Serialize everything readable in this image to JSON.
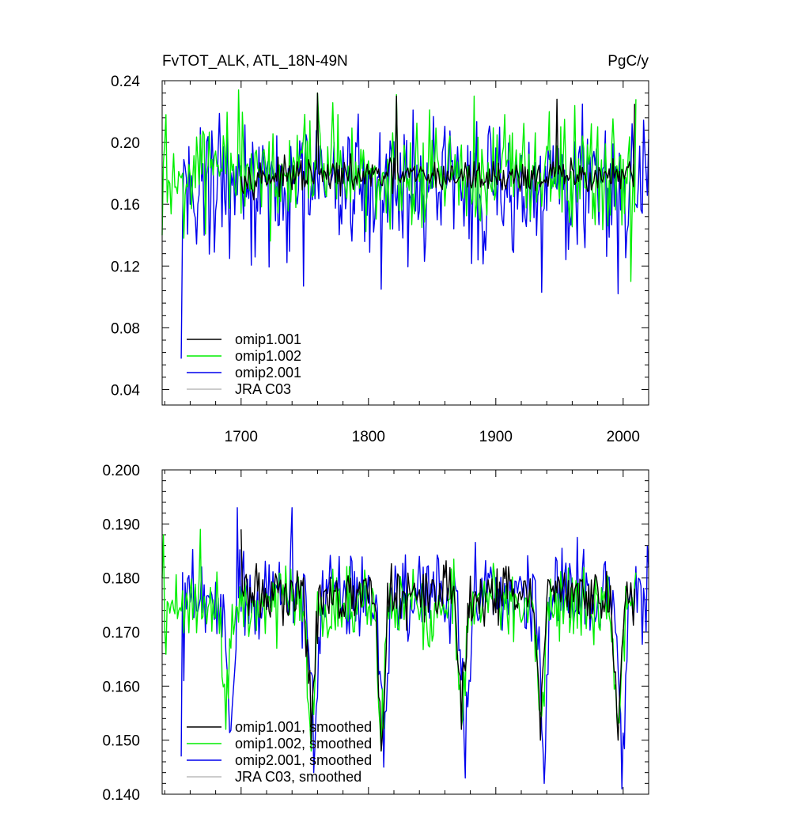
{
  "colors": {
    "omip1_001": "#000000",
    "omip1_002": "#00ee00",
    "omip2_001": "#0000ee",
    "jra_c03": "#bbbbbb"
  },
  "chart_data": [
    {
      "type": "line",
      "title": "FvTOT_ALK, ATL_18N-49N",
      "units": "PgC/y",
      "xlabel": "",
      "ylabel": "",
      "xlim": [
        1638,
        2020
      ],
      "ylim": [
        0.03,
        0.24
      ],
      "x_ticks": [
        1700,
        1800,
        1900,
        2000
      ],
      "x_tick_labels": [
        "1700",
        "1800",
        "1900",
        "2000"
      ],
      "y_ticks": [
        0.04,
        0.08,
        0.12,
        0.16,
        0.2,
        0.24
      ],
      "y_tick_labels": [
        "0.04",
        "0.08",
        "0.12",
        "0.16",
        "0.20",
        "0.24"
      ],
      "grid": false,
      "legend_position": "bottom-left",
      "series": [
        {
          "name": "omip1.001",
          "color_key": "omip1_001",
          "x_start": 1700,
          "x_end": 2009,
          "base": 0.178,
          "noise": 0.008,
          "dips": [],
          "sample_points": [
            [
              1700,
              0.178
            ],
            [
              1760,
              0.232
            ],
            [
              1822,
              0.23
            ],
            [
              1948,
              0.228
            ],
            [
              2009,
              0.225
            ]
          ]
        },
        {
          "name": "omip1.002",
          "color_key": "omip1_002",
          "x_start": 1638,
          "x_end": 2010,
          "base": 0.177,
          "noise": 0.028,
          "dips": [],
          "sample_points": [
            [
              1638,
              0.14
            ],
            [
              1641,
              0.218
            ],
            [
              1698,
              0.234
            ],
            [
              1760,
              0.232
            ],
            [
              1822,
              0.231
            ],
            [
              1883,
              0.23
            ],
            [
              2006,
              0.11
            ],
            [
              2010,
              0.228
            ]
          ]
        },
        {
          "name": "omip2.001",
          "color_key": "omip2_001",
          "x_start": 1653,
          "x_end": 2020,
          "base": 0.172,
          "noise": 0.034,
          "dips": [],
          "sample_points": [
            [
              1653,
              0.06
            ],
            [
              1655,
              0.189
            ],
            [
              1660,
              0.16
            ],
            [
              1749,
              0.107
            ],
            [
              1810,
              0.105
            ],
            [
              1936,
              0.103
            ],
            [
              1996,
              0.102
            ],
            [
              2020,
              0.202
            ]
          ]
        },
        {
          "name": "JRA C03",
          "color_key": "jra_c03",
          "x_start": null,
          "x_end": null,
          "sample_points": []
        }
      ]
    },
    {
      "type": "line",
      "title": "",
      "xlabel": "",
      "ylabel": "",
      "xlim": [
        1638,
        2020
      ],
      "ylim": [
        0.14,
        0.2
      ],
      "x_ticks": [
        1700,
        1800,
        1900,
        2000
      ],
      "x_tick_labels": [],
      "y_ticks": [
        0.14,
        0.15,
        0.16,
        0.17,
        0.18,
        0.19,
        0.2
      ],
      "y_tick_labels": [
        "0.140",
        "0.150",
        "0.160",
        "0.170",
        "0.180",
        "0.190",
        "0.200"
      ],
      "grid": false,
      "legend_position": "bottom-left",
      "series": [
        {
          "name": "omip1.001, smoothed",
          "color_key": "omip1_001",
          "x_start": 1700,
          "x_end": 2009,
          "base": 0.177,
          "noise": 0.004,
          "dips": [
            [
              1755,
              0.15
            ],
            [
              1810,
              0.148
            ],
            [
              1873,
              0.152
            ],
            [
              1935,
              0.15
            ],
            [
              1996,
              0.15
            ]
          ],
          "sample_points": [
            [
              1700,
              0.189
            ],
            [
              1755,
              0.15
            ],
            [
              1810,
              0.148
            ],
            [
              1873,
              0.152
            ],
            [
              1935,
              0.15
            ],
            [
              1996,
              0.15
            ],
            [
              2009,
              0.178
            ]
          ]
        },
        {
          "name": "omip1.002, smoothed",
          "color_key": "omip1_002",
          "x_start": 1638,
          "x_end": 2010,
          "base": 0.175,
          "noise": 0.005,
          "dips": [
            [
              1688,
              0.152
            ],
            [
              1755,
              0.148
            ],
            [
              1810,
              0.148
            ],
            [
              1873,
              0.15
            ],
            [
              1935,
              0.148
            ],
            [
              1996,
              0.148
            ]
          ],
          "sample_points": [
            [
              1638,
              0.18
            ],
            [
              1639,
              0.188
            ],
            [
              1668,
              0.189
            ],
            [
              1688,
              0.152
            ],
            [
              1755,
              0.148
            ],
            [
              1810,
              0.148
            ],
            [
              2010,
              0.181
            ]
          ]
        },
        {
          "name": "omip2.001, smoothed",
          "color_key": "omip2_001",
          "x_start": 1653,
          "x_end": 2020,
          "base": 0.177,
          "noise": 0.006,
          "dips": [
            [
              1692,
              0.149
            ],
            [
              1757,
              0.144
            ],
            [
              1812,
              0.145
            ],
            [
              1876,
              0.143
            ],
            [
              1938,
              0.142
            ],
            [
              1999,
              0.141
            ]
          ],
          "sample_points": [
            [
              1653,
              0.147
            ],
            [
              1655,
              0.161
            ],
            [
              1697,
              0.193
            ],
            [
              1740,
              0.193
            ],
            [
              1757,
              0.144
            ],
            [
              1812,
              0.145
            ],
            [
              1876,
              0.143
            ],
            [
              1938,
              0.142
            ],
            [
              1999,
              0.141
            ],
            [
              2020,
              0.182
            ]
          ]
        },
        {
          "name": "JRA C03, smoothed",
          "color_key": "jra_c03",
          "x_start": null,
          "x_end": null,
          "sample_points": []
        }
      ]
    }
  ]
}
